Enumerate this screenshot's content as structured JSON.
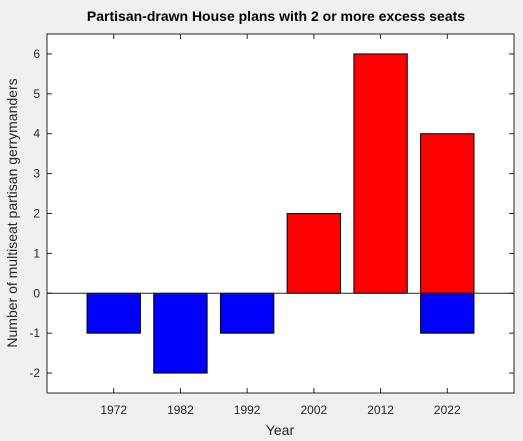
{
  "chart_data": {
    "type": "bar",
    "title": "Partisan-drawn House plans with 2 or more excess seats",
    "xlabel": "Year",
    "ylabel": "Number of multiseat partisan gerrymanders",
    "categories": [
      "1972",
      "1982",
      "1992",
      "2002",
      "2012",
      "2022"
    ],
    "ylim": [
      -2.5,
      6.5
    ],
    "yticks": [
      -2,
      -1,
      0,
      1,
      2,
      3,
      4,
      5,
      6
    ],
    "grid": false,
    "stacked": true,
    "series": [
      {
        "color": "#ff0000",
        "values": [
          0,
          0,
          0,
          2,
          6,
          4
        ]
      },
      {
        "color": "#0000ff",
        "values": [
          -1,
          -2,
          -1,
          0,
          0,
          -1
        ]
      }
    ]
  }
}
